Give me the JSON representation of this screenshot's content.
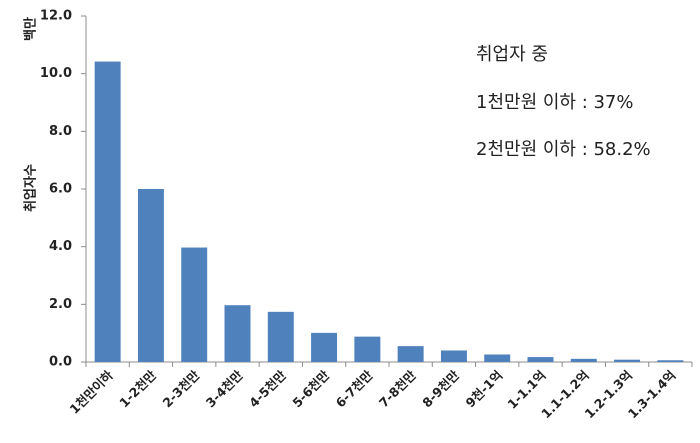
{
  "chart_data": {
    "type": "bar",
    "categories": [
      "1천만이하",
      "1-2천만",
      "2-3천만",
      "3-4천만",
      "4-5천만",
      "5-6천만",
      "6-7천만",
      "7-8천만",
      "8-9천만",
      "9천-1억",
      "1-1.1억",
      "1.1-1.2억",
      "1.2-1.3억",
      "1.3-1.4억"
    ],
    "values": [
      10.42,
      6.0,
      3.97,
      1.97,
      1.74,
      1.01,
      0.88,
      0.55,
      0.4,
      0.26,
      0.17,
      0.11,
      0.08,
      0.06
    ],
    "ylim": [
      0,
      12
    ],
    "yticks": [
      "0.0",
      "2.0",
      "4.0",
      "6.0",
      "8.0",
      "10.0",
      "12.0"
    ],
    "ytick_values": [
      0,
      2,
      4,
      6,
      8,
      10,
      12
    ],
    "ylabel": "취업자수",
    "yunit": "백만",
    "grid": false,
    "bar_color": "#4F81BD",
    "annotations": [
      "취업자 중",
      "1천만원 이하 : 37%",
      "2천만원 이하 : 58.2%"
    ]
  }
}
